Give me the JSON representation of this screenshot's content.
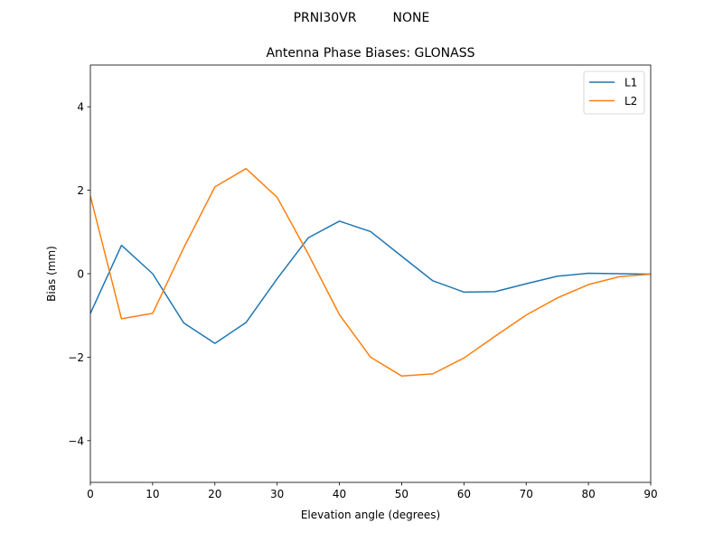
{
  "suptitle": "PRNI30VR         NONE",
  "chart_data": {
    "type": "line",
    "title": "Antenna Phase Biases: GLONASS",
    "xlabel": "Elevation angle (degrees)",
    "ylabel": "Bias (mm)",
    "xlim": [
      0,
      90
    ],
    "ylim": [
      -5,
      5
    ],
    "xticks": [
      0,
      10,
      20,
      30,
      40,
      50,
      60,
      70,
      80,
      90
    ],
    "yticks": [
      -4,
      -2,
      0,
      2,
      4
    ],
    "ytick_labels": [
      "−4",
      "−2",
      "0",
      "2",
      "4"
    ],
    "grid": false,
    "legend_position": "top-right",
    "x": [
      0,
      5,
      10,
      15,
      20,
      25,
      30,
      35,
      40,
      45,
      50,
      55,
      60,
      65,
      70,
      75,
      80,
      85,
      90
    ],
    "series": [
      {
        "name": "L1",
        "color": "#1f77b4",
        "values": [
          -0.95,
          0.68,
          0.0,
          -1.18,
          -1.67,
          -1.17,
          -0.12,
          0.86,
          1.26,
          1.01,
          0.42,
          -0.17,
          -0.44,
          -0.43,
          -0.24,
          -0.06,
          0.01,
          0.0,
          -0.01
        ]
      },
      {
        "name": "L2",
        "color": "#ff7f0e",
        "values": [
          1.86,
          -1.08,
          -0.95,
          0.62,
          2.08,
          2.52,
          1.83,
          0.47,
          -0.98,
          -2.0,
          -2.45,
          -2.4,
          -2.02,
          -1.5,
          -0.99,
          -0.58,
          -0.26,
          -0.07,
          -0.01
        ]
      }
    ]
  }
}
